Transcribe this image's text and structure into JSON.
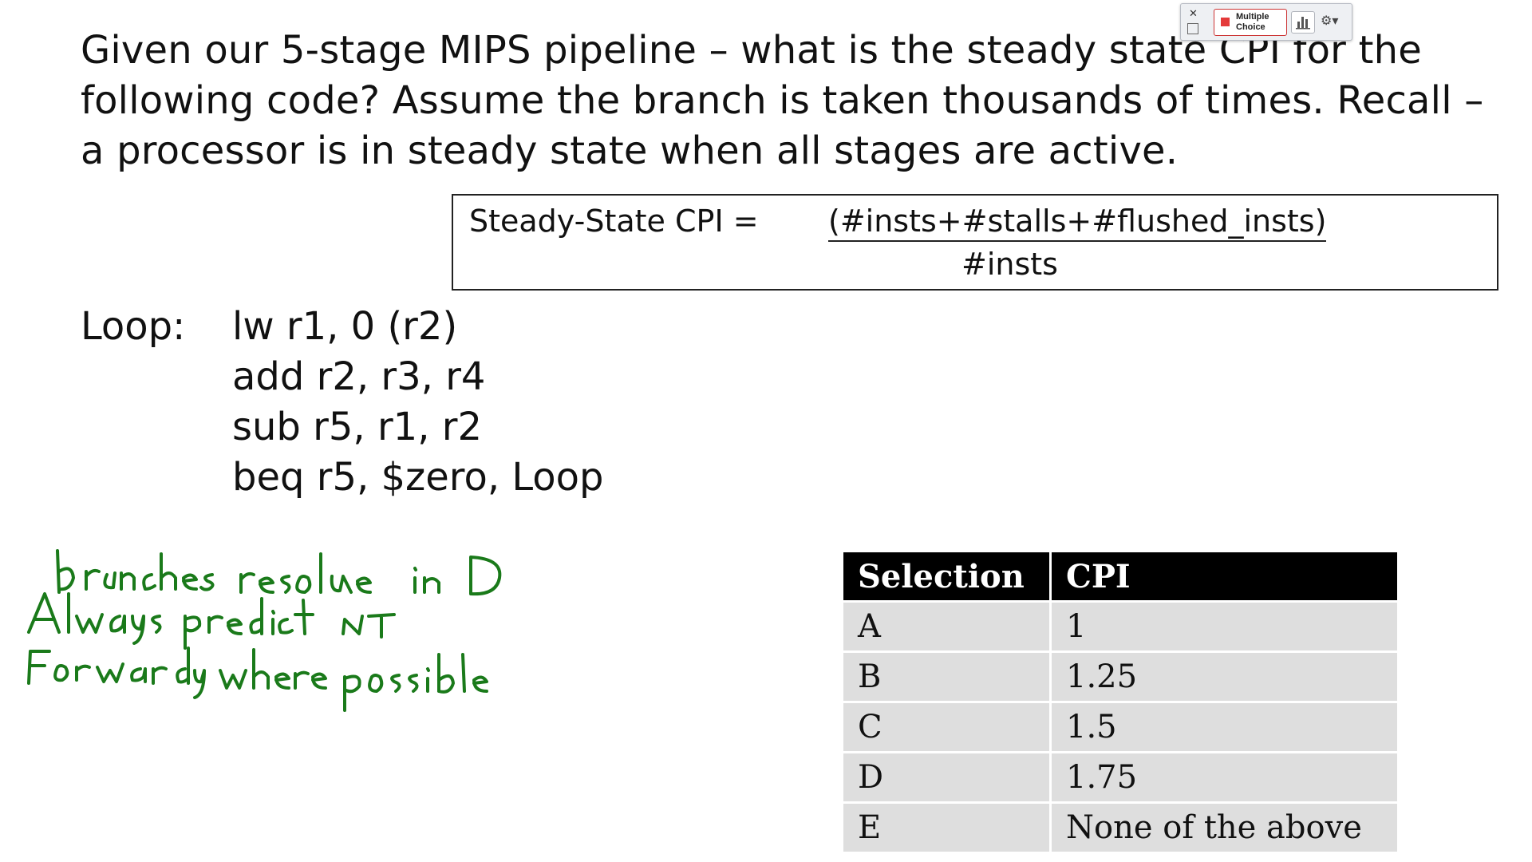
{
  "question": {
    "text": "Given our 5-stage MIPS pipeline – what is the steady state CPI for the following code? Assume the branch is taken thousands of times.  Recall – a processor is in steady state when all stages are active."
  },
  "formula": {
    "label": "Steady-State CPI = ",
    "numerator": "(#insts+#stalls+#flushed_insts)",
    "denominator": "#insts"
  },
  "code": {
    "label": "Loop:",
    "lines": [
      "lw r1, 0 (r2)",
      "add r2, r3, r4",
      "sub r5, r1, r2",
      "beq r5, $zero, Loop"
    ]
  },
  "notes": {
    "lines": [
      "branches resolve in D",
      "Always predict NT",
      "Forwarding where possible"
    ],
    "color": "#1a7a1a"
  },
  "answers": {
    "headers": [
      "Selection",
      "CPI"
    ],
    "rows": [
      [
        "A",
        "1"
      ],
      [
        "B",
        "1.25"
      ],
      [
        "C",
        "1.5"
      ],
      [
        "D",
        "1.75"
      ],
      [
        "E",
        "None of the above"
      ]
    ]
  },
  "toolbar": {
    "close_icon": "close-icon",
    "multiple_choice_label": "Multiple Choice",
    "chart_icon": "bar-chart-icon",
    "settings_icon": "gear-icon"
  }
}
